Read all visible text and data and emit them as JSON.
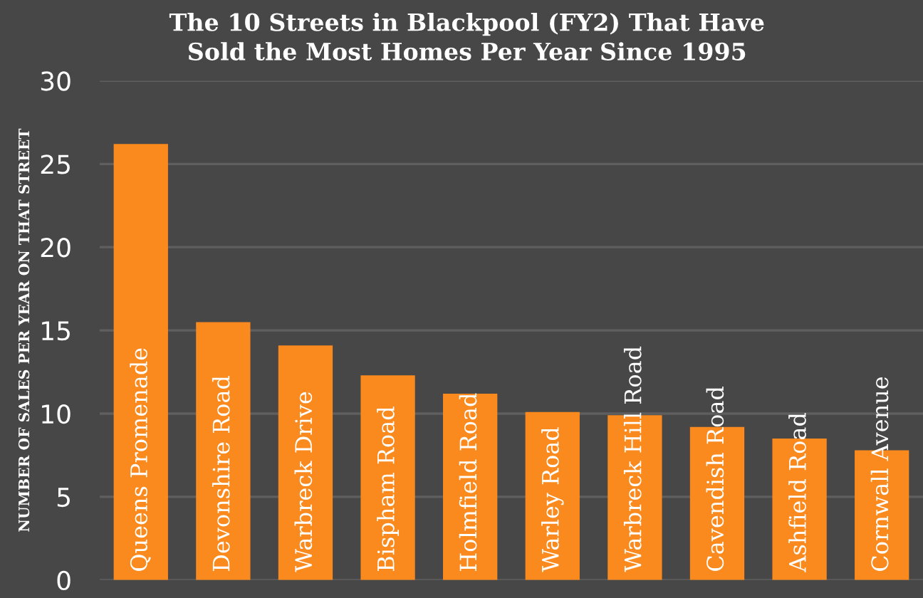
{
  "chart_data": {
    "type": "bar",
    "title": "The 10 Streets in Blackpool (FY2) That Have\nSold the Most Homes Per Year Since 1995",
    "ylabel": "NUMBER OF SALES PER YEAR ON THAT STREET",
    "categories": [
      "Queens Promenade",
      "Devonshire Road",
      "Warbreck Drive",
      "Bispham Road",
      "Holmfield Road",
      "Warley Road",
      "Warbreck Hill Road",
      "Cavendish Road",
      "Ashfield Road",
      "Cornwall Avenue"
    ],
    "values": [
      26.2,
      15.5,
      14.1,
      12.3,
      11.2,
      10.1,
      9.9,
      9.2,
      8.5,
      7.8
    ],
    "color": "#fa8a1e",
    "ylim": [
      0,
      30
    ],
    "yticks": [
      0,
      5,
      10,
      15,
      20,
      25,
      30
    ],
    "grid": "y"
  }
}
